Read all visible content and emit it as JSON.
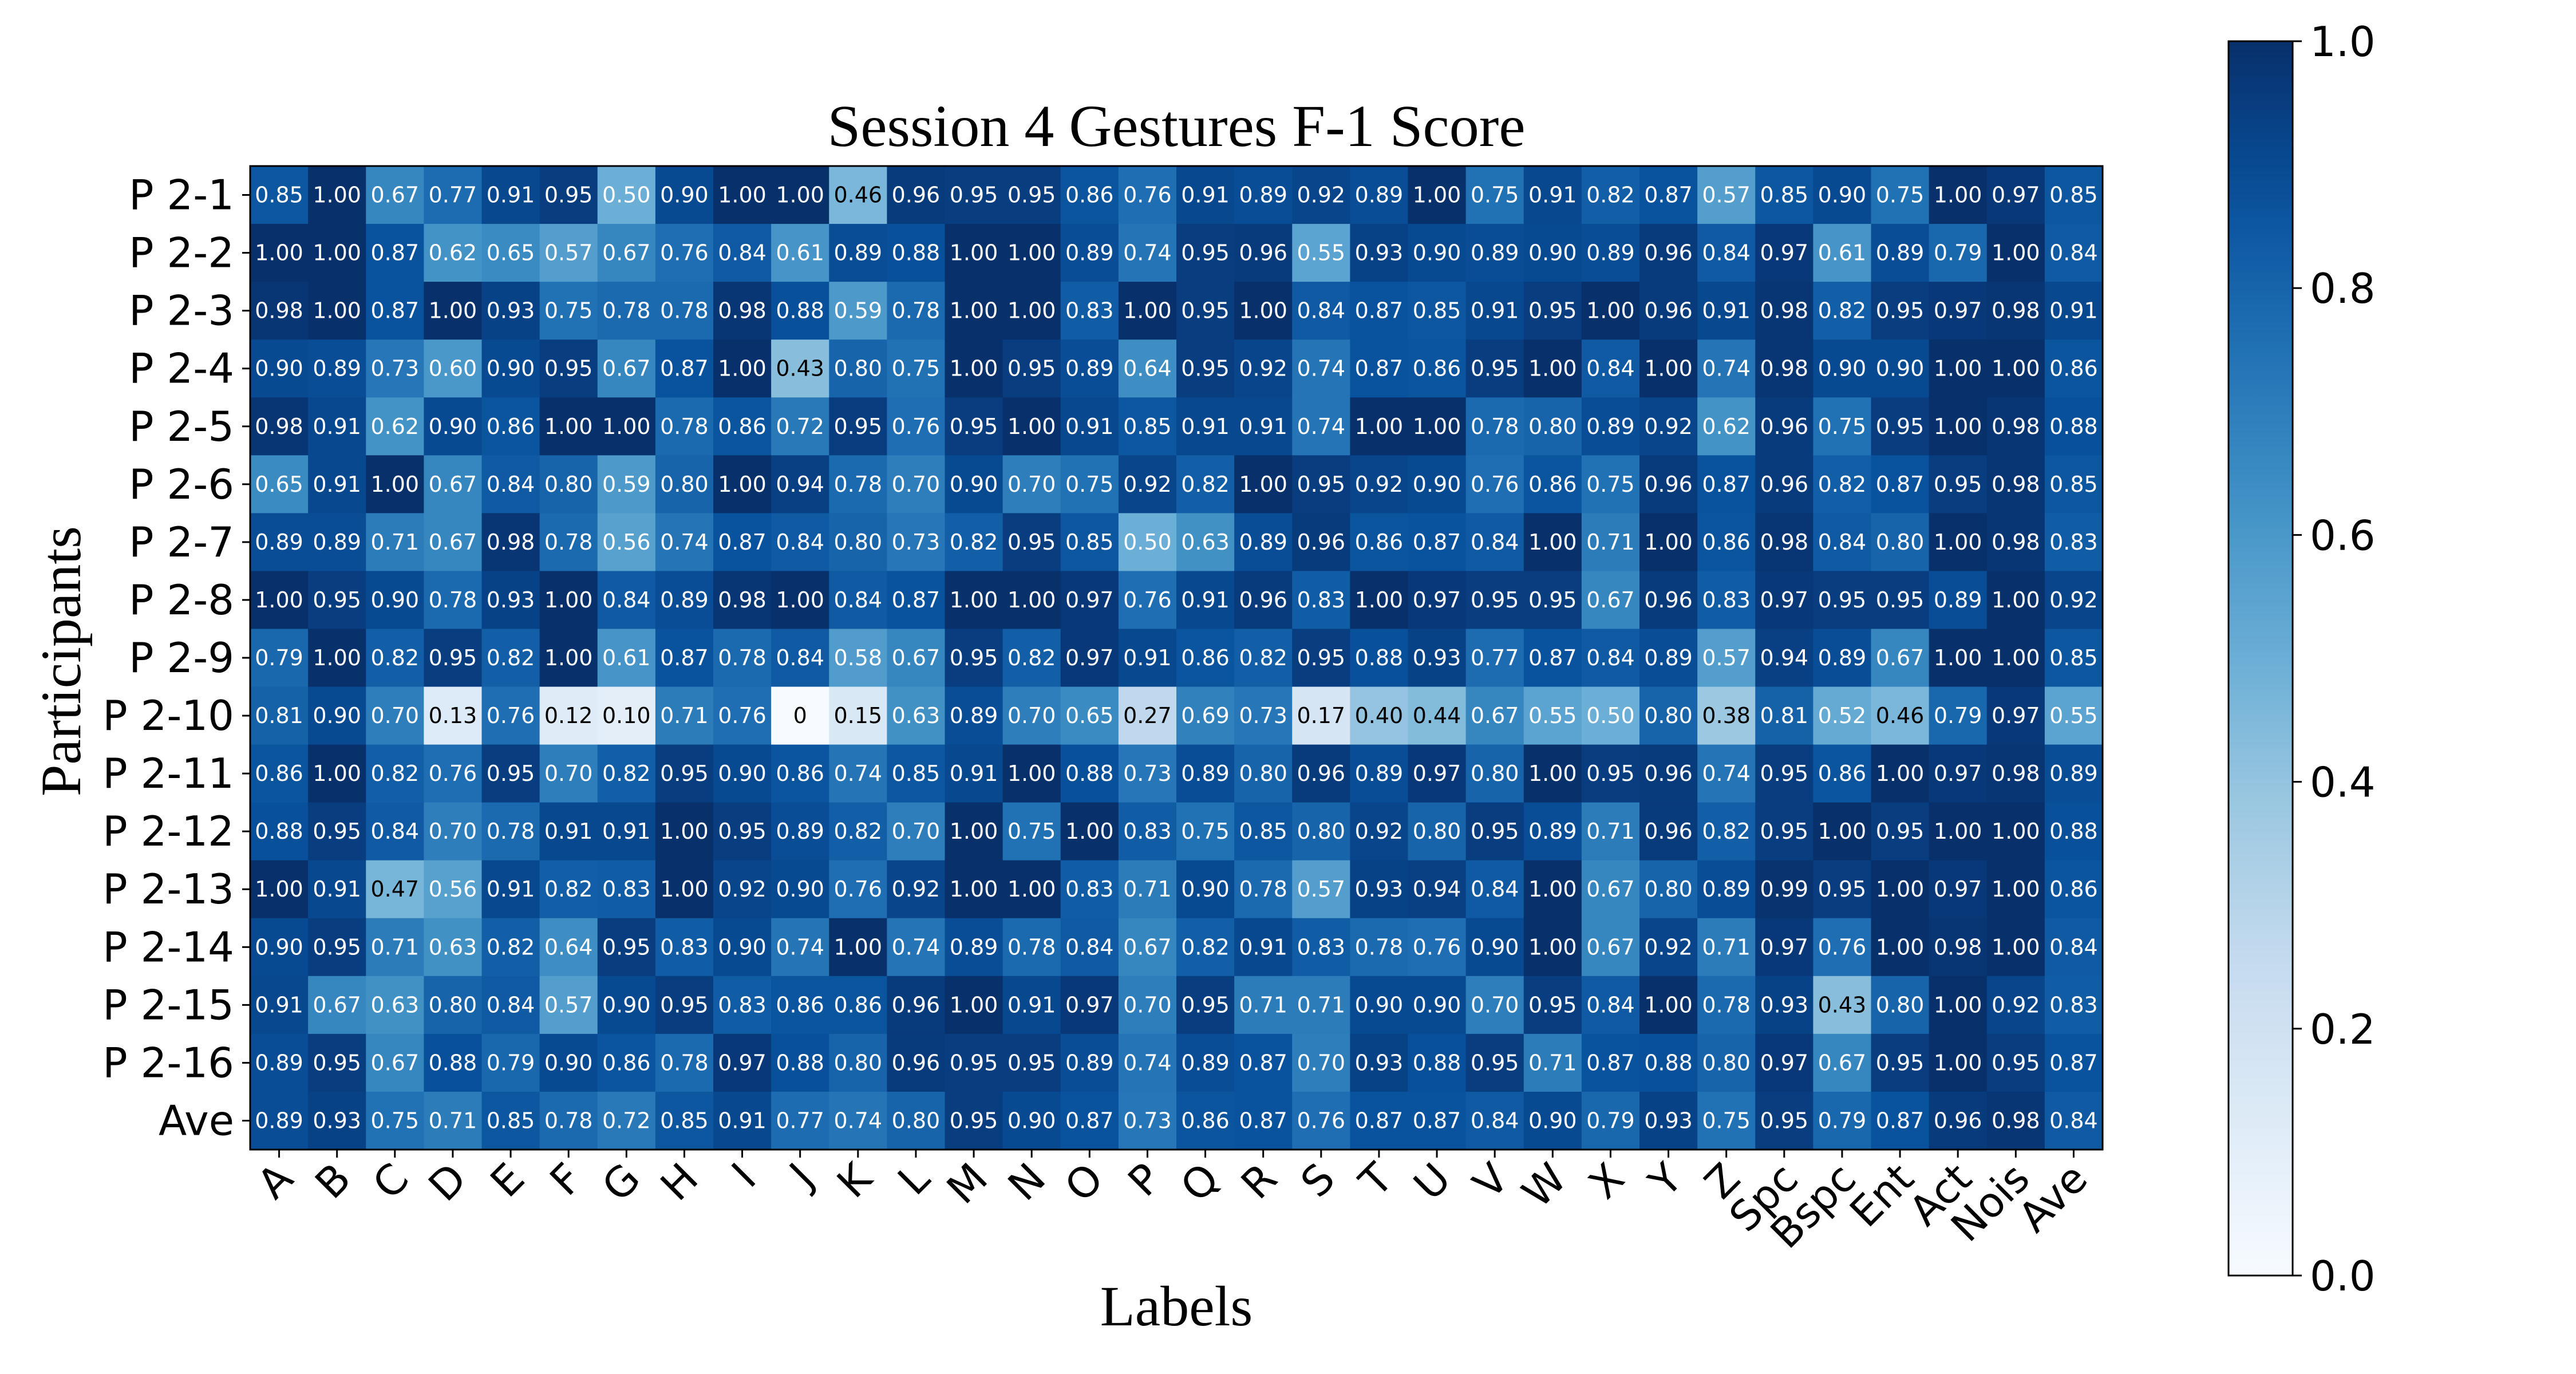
{
  "chart_data": {
    "type": "heatmap",
    "title": "Session 4 Gestures F-1 Score",
    "xlabel": "Labels",
    "ylabel": "Participants",
    "x_labels": [
      "A",
      "B",
      "C",
      "D",
      "E",
      "F",
      "G",
      "H",
      "I",
      "J",
      "K",
      "L",
      "M",
      "N",
      "O",
      "P",
      "Q",
      "R",
      "S",
      "T",
      "U",
      "V",
      "W",
      "X",
      "Y",
      "Z",
      "Spc",
      "Bspc",
      "Ent",
      "Act",
      "Nois",
      "Ave"
    ],
    "y_labels": [
      "P 2-1",
      "P 2-2",
      "P 2-3",
      "P 2-4",
      "P 2-5",
      "P 2-6",
      "P 2-7",
      "P 2-8",
      "P 2-9",
      "P 2-10",
      "P 2-11",
      "P 2-12",
      "P 2-13",
      "P 2-14",
      "P 2-15",
      "P 2-16",
      "Ave"
    ],
    "values": [
      [
        "0.85",
        "1.00",
        "0.67",
        "0.77",
        "0.91",
        "0.95",
        "0.50",
        "0.90",
        "1.00",
        "1.00",
        "0.46",
        "0.96",
        "0.95",
        "0.95",
        "0.86",
        "0.76",
        "0.91",
        "0.89",
        "0.92",
        "0.89",
        "1.00",
        "0.75",
        "0.91",
        "0.82",
        "0.87",
        "0.57",
        "0.85",
        "0.90",
        "0.75",
        "1.00",
        "0.97",
        "0.85"
      ],
      [
        "1.00",
        "1.00",
        "0.87",
        "0.62",
        "0.65",
        "0.57",
        "0.67",
        "0.76",
        "0.84",
        "0.61",
        "0.89",
        "0.88",
        "1.00",
        "1.00",
        "0.89",
        "0.74",
        "0.95",
        "0.96",
        "0.55",
        "0.93",
        "0.90",
        "0.89",
        "0.90",
        "0.89",
        "0.96",
        "0.84",
        "0.97",
        "0.61",
        "0.89",
        "0.79",
        "1.00",
        "0.84"
      ],
      [
        "0.98",
        "1.00",
        "0.87",
        "1.00",
        "0.93",
        "0.75",
        "0.78",
        "0.78",
        "0.98",
        "0.88",
        "0.59",
        "0.78",
        "1.00",
        "1.00",
        "0.83",
        "1.00",
        "0.95",
        "1.00",
        "0.84",
        "0.87",
        "0.85",
        "0.91",
        "0.95",
        "1.00",
        "0.96",
        "0.91",
        "0.98",
        "0.82",
        "0.95",
        "0.97",
        "0.98",
        "0.91"
      ],
      [
        "0.90",
        "0.89",
        "0.73",
        "0.60",
        "0.90",
        "0.95",
        "0.67",
        "0.87",
        "1.00",
        "0.43",
        "0.80",
        "0.75",
        "1.00",
        "0.95",
        "0.89",
        "0.64",
        "0.95",
        "0.92",
        "0.74",
        "0.87",
        "0.86",
        "0.95",
        "1.00",
        "0.84",
        "1.00",
        "0.74",
        "0.98",
        "0.90",
        "0.90",
        "1.00",
        "1.00",
        "0.86"
      ],
      [
        "0.98",
        "0.91",
        "0.62",
        "0.90",
        "0.86",
        "1.00",
        "1.00",
        "0.78",
        "0.86",
        "0.72",
        "0.95",
        "0.76",
        "0.95",
        "1.00",
        "0.91",
        "0.85",
        "0.91",
        "0.91",
        "0.74",
        "1.00",
        "1.00",
        "0.78",
        "0.80",
        "0.89",
        "0.92",
        "0.62",
        "0.96",
        "0.75",
        "0.95",
        "1.00",
        "0.98",
        "0.88"
      ],
      [
        "0.65",
        "0.91",
        "1.00",
        "0.67",
        "0.84",
        "0.80",
        "0.59",
        "0.80",
        "1.00",
        "0.94",
        "0.78",
        "0.70",
        "0.90",
        "0.70",
        "0.75",
        "0.92",
        "0.82",
        "1.00",
        "0.95",
        "0.92",
        "0.90",
        "0.76",
        "0.86",
        "0.75",
        "0.96",
        "0.87",
        "0.96",
        "0.82",
        "0.87",
        "0.95",
        "0.98",
        "0.85"
      ],
      [
        "0.89",
        "0.89",
        "0.71",
        "0.67",
        "0.98",
        "0.78",
        "0.56",
        "0.74",
        "0.87",
        "0.84",
        "0.80",
        "0.73",
        "0.82",
        "0.95",
        "0.85",
        "0.50",
        "0.63",
        "0.89",
        "0.96",
        "0.86",
        "0.87",
        "0.84",
        "1.00",
        "0.71",
        "1.00",
        "0.86",
        "0.98",
        "0.84",
        "0.80",
        "1.00",
        "0.98",
        "0.83"
      ],
      [
        "1.00",
        "0.95",
        "0.90",
        "0.78",
        "0.93",
        "1.00",
        "0.84",
        "0.89",
        "0.98",
        "1.00",
        "0.84",
        "0.87",
        "1.00",
        "1.00",
        "0.97",
        "0.76",
        "0.91",
        "0.96",
        "0.83",
        "1.00",
        "0.97",
        "0.95",
        "0.95",
        "0.67",
        "0.96",
        "0.83",
        "0.97",
        "0.95",
        "0.95",
        "0.89",
        "1.00",
        "0.92"
      ],
      [
        "0.79",
        "1.00",
        "0.82",
        "0.95",
        "0.82",
        "1.00",
        "0.61",
        "0.87",
        "0.78",
        "0.84",
        "0.58",
        "0.67",
        "0.95",
        "0.82",
        "0.97",
        "0.91",
        "0.86",
        "0.82",
        "0.95",
        "0.88",
        "0.93",
        "0.77",
        "0.87",
        "0.84",
        "0.89",
        "0.57",
        "0.94",
        "0.89",
        "0.67",
        "1.00",
        "1.00",
        "0.85"
      ],
      [
        "0.81",
        "0.90",
        "0.70",
        "0.13",
        "0.76",
        "0.12",
        "0.10",
        "0.71",
        "0.76",
        "0",
        "0.15",
        "0.63",
        "0.89",
        "0.70",
        "0.65",
        "0.27",
        "0.69",
        "0.73",
        "0.17",
        "0.40",
        "0.44",
        "0.67",
        "0.55",
        "0.50",
        "0.80",
        "0.38",
        "0.81",
        "0.52",
        "0.46",
        "0.79",
        "0.97",
        "0.55"
      ],
      [
        "0.86",
        "1.00",
        "0.82",
        "0.76",
        "0.95",
        "0.70",
        "0.82",
        "0.95",
        "0.90",
        "0.86",
        "0.74",
        "0.85",
        "0.91",
        "1.00",
        "0.88",
        "0.73",
        "0.89",
        "0.80",
        "0.96",
        "0.89",
        "0.97",
        "0.80",
        "1.00",
        "0.95",
        "0.96",
        "0.74",
        "0.95",
        "0.86",
        "1.00",
        "0.97",
        "0.98",
        "0.89"
      ],
      [
        "0.88",
        "0.95",
        "0.84",
        "0.70",
        "0.78",
        "0.91",
        "0.91",
        "1.00",
        "0.95",
        "0.89",
        "0.82",
        "0.70",
        "1.00",
        "0.75",
        "1.00",
        "0.83",
        "0.75",
        "0.85",
        "0.80",
        "0.92",
        "0.80",
        "0.95",
        "0.89",
        "0.71",
        "0.96",
        "0.82",
        "0.95",
        "1.00",
        "0.95",
        "1.00",
        "1.00",
        "0.88"
      ],
      [
        "1.00",
        "0.91",
        "0.47",
        "0.56",
        "0.91",
        "0.82",
        "0.83",
        "1.00",
        "0.92",
        "0.90",
        "0.76",
        "0.92",
        "1.00",
        "1.00",
        "0.83",
        "0.71",
        "0.90",
        "0.78",
        "0.57",
        "0.93",
        "0.94",
        "0.84",
        "1.00",
        "0.67",
        "0.80",
        "0.89",
        "0.99",
        "0.95",
        "1.00",
        "0.97",
        "1.00",
        "0.86"
      ],
      [
        "0.90",
        "0.95",
        "0.71",
        "0.63",
        "0.82",
        "0.64",
        "0.95",
        "0.83",
        "0.90",
        "0.74",
        "1.00",
        "0.74",
        "0.89",
        "0.78",
        "0.84",
        "0.67",
        "0.82",
        "0.91",
        "0.83",
        "0.78",
        "0.76",
        "0.90",
        "1.00",
        "0.67",
        "0.92",
        "0.71",
        "0.97",
        "0.76",
        "1.00",
        "0.98",
        "1.00",
        "0.84"
      ],
      [
        "0.91",
        "0.67",
        "0.63",
        "0.80",
        "0.84",
        "0.57",
        "0.90",
        "0.95",
        "0.83",
        "0.86",
        "0.86",
        "0.96",
        "1.00",
        "0.91",
        "0.97",
        "0.70",
        "0.95",
        "0.71",
        "0.71",
        "0.90",
        "0.90",
        "0.70",
        "0.95",
        "0.84",
        "1.00",
        "0.78",
        "0.93",
        "0.43",
        "0.80",
        "1.00",
        "0.92",
        "0.83"
      ],
      [
        "0.89",
        "0.95",
        "0.67",
        "0.88",
        "0.79",
        "0.90",
        "0.86",
        "0.78",
        "0.97",
        "0.88",
        "0.80",
        "0.96",
        "0.95",
        "0.95",
        "0.89",
        "0.74",
        "0.89",
        "0.87",
        "0.70",
        "0.93",
        "0.88",
        "0.95",
        "0.71",
        "0.87",
        "0.88",
        "0.80",
        "0.97",
        "0.67",
        "0.95",
        "1.00",
        "0.95",
        "0.87"
      ],
      [
        "0.89",
        "0.93",
        "0.75",
        "0.71",
        "0.85",
        "0.78",
        "0.72",
        "0.85",
        "0.91",
        "0.77",
        "0.74",
        "0.80",
        "0.95",
        "0.90",
        "0.87",
        "0.73",
        "0.86",
        "0.87",
        "0.76",
        "0.87",
        "0.87",
        "0.84",
        "0.90",
        "0.79",
        "0.93",
        "0.75",
        "0.95",
        "0.79",
        "0.87",
        "0.96",
        "0.98",
        "0.84"
      ]
    ],
    "colorbar": {
      "range": [
        0.0,
        1.0
      ],
      "ticks": [
        "0.0",
        "0.2",
        "0.4",
        "0.6",
        "0.8",
        "1.0"
      ],
      "colormap": "Blues",
      "low_color": "#f7fbff",
      "high_color": "#08306b"
    }
  }
}
